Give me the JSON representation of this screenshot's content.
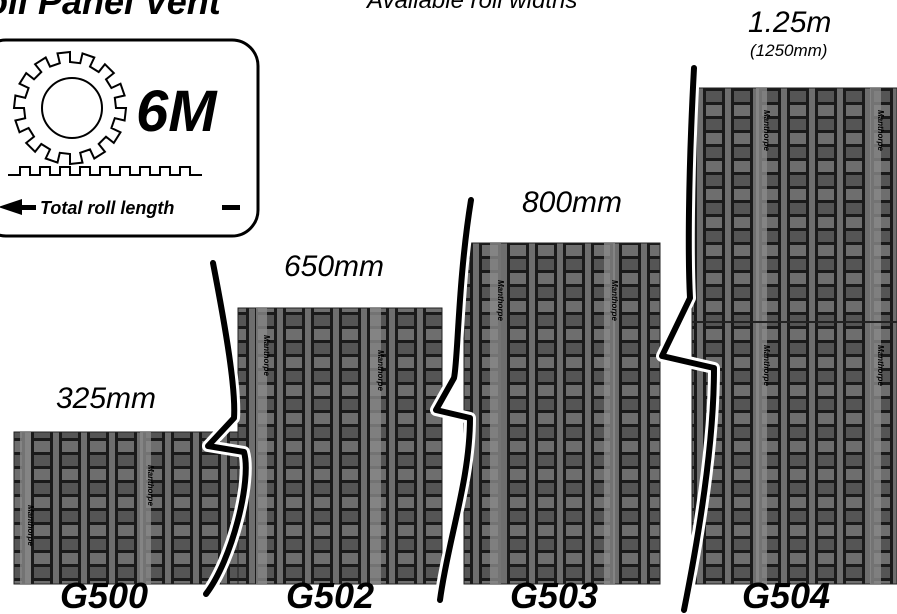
{
  "header": {
    "title": "Roll Panel Vent",
    "subtitle": "Available roll widths"
  },
  "length_badge": {
    "value": "6M",
    "caption": "Total roll length"
  },
  "rolls": [
    {
      "model": "G500",
      "width_label": "325mm",
      "width_mm": 325
    },
    {
      "model": "G502",
      "width_label": "650mm",
      "width_mm": 650
    },
    {
      "model": "G503",
      "width_label": "800mm",
      "width_mm": 800
    },
    {
      "model": "G504",
      "width_label": "1.25m",
      "width_sub": "(1250mm)",
      "width_mm": 1250
    }
  ],
  "panel_stamp": "Manthorpe",
  "colors": {
    "panel_fill": "#6e6e6e",
    "panel_grid": "#1a1a1a",
    "stripe": "#8a8a8a",
    "break_line": "#000000"
  }
}
